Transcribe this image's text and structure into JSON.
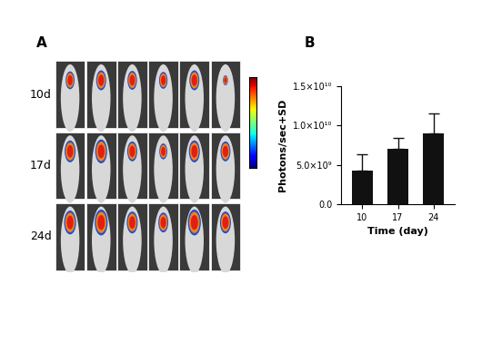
{
  "panel_a": {
    "label": "A",
    "rows": [
      "10d",
      "17d",
      "24d"
    ]
  },
  "chart_data": {
    "type": "bar",
    "panel_label": "B",
    "x_label": "Time (day)",
    "y_label": "Photons/sec+SD",
    "categories": [
      "10",
      "17",
      "24"
    ],
    "values": [
      4300000000,
      7000000000,
      9000000000
    ],
    "errors": [
      2100000000,
      1400000000,
      2500000000
    ],
    "color": "#111111",
    "ylim": [
      0,
      15000000000
    ],
    "yticks": [
      {
        "value": 0,
        "label": "0.0"
      },
      {
        "value": 5000000000,
        "label": "5.0×10⁹"
      },
      {
        "value": 10000000000,
        "label": "1.0×10¹⁰"
      },
      {
        "value": 15000000000,
        "label": "1.5×10¹⁰"
      }
    ],
    "grid": false
  }
}
